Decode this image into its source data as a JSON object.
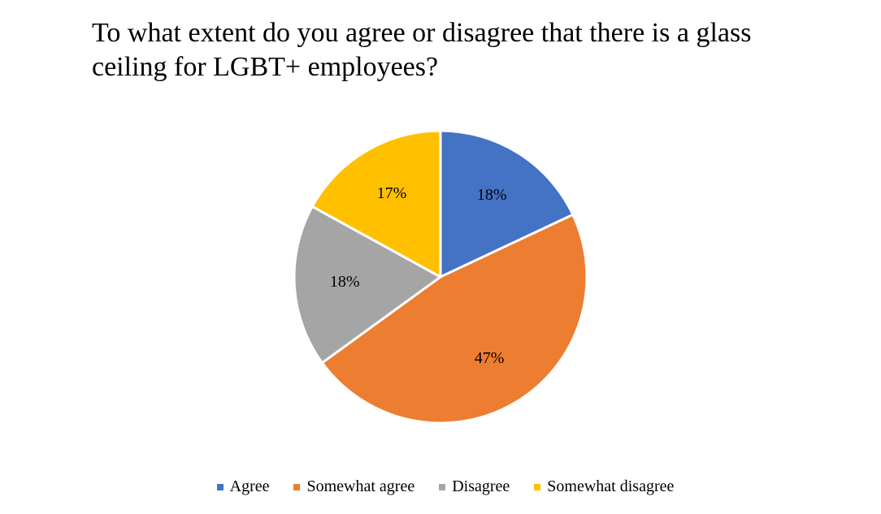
{
  "chart_data": {
    "type": "pie",
    "title": "To what extent do you agree or disagree that there is a glass ceiling for LGBT+ employees?",
    "categories": [
      "Agree",
      "Somewhat agree",
      "Disagree",
      "Somewhat disagree"
    ],
    "values": [
      18,
      47,
      18,
      17
    ],
    "data_labels": [
      "18%",
      "47%",
      "18%",
      "17%"
    ],
    "colors": [
      "#4472C4",
      "#ED7D31",
      "#A5A5A5",
      "#FFC000"
    ],
    "legend_position": "bottom",
    "start_angle": "12 o'clock",
    "direction": "clockwise"
  }
}
